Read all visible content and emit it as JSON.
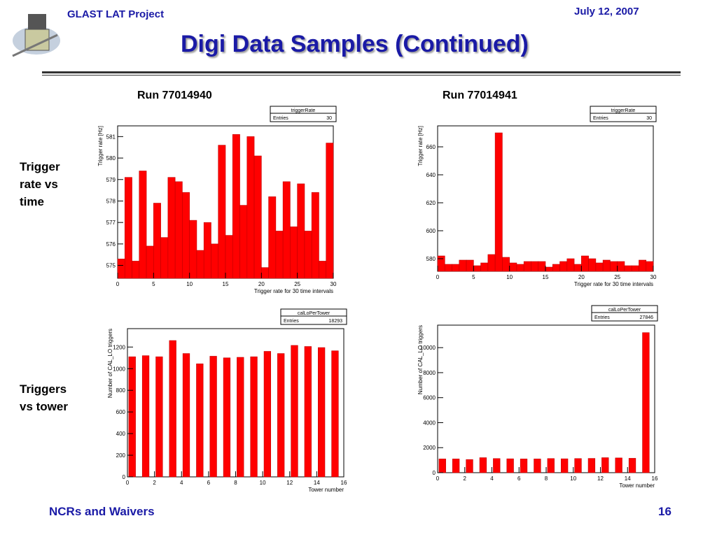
{
  "header": {
    "project": "GLAST LAT Project",
    "date": "July 12, 2007",
    "title": "Digi Data Samples (Continued)"
  },
  "columns": [
    "Run 77014940",
    "Run 77014941"
  ],
  "rows": [
    "Trigger rate vs time",
    "Triggers vs tower"
  ],
  "footer": {
    "left": "NCRs and Waivers",
    "page": "16"
  },
  "chart_data": [
    {
      "type": "histogram",
      "stats_title": "triggerRate",
      "stats_label": "Entries",
      "stats_value": 30,
      "x_label": "Trigger rate for 30 time intervals",
      "y_label": "Trigger rate [Hz]",
      "color": "#ff0000",
      "bins": [
        0,
        1,
        2,
        3,
        4,
        5,
        6,
        7,
        8,
        9,
        10,
        11,
        12,
        13,
        14,
        15,
        16,
        17,
        18,
        19,
        20,
        21,
        22,
        23,
        24,
        25,
        26,
        27,
        28,
        29,
        30
      ],
      "values": [
        575.3,
        579.1,
        575.2,
        579.4,
        575.9,
        577.9,
        576.3,
        579.1,
        578.9,
        578.4,
        577.1,
        575.7,
        577.0,
        576.0,
        580.6,
        576.4,
        581.1,
        577.8,
        581.0,
        580.1,
        574.9,
        578.2,
        576.6,
        578.9,
        576.8,
        578.8,
        576.6,
        578.4,
        575.2,
        580.7
      ],
      "xlim": [
        0,
        30
      ],
      "xticks": [
        0,
        5,
        10,
        15,
        20,
        25,
        30
      ],
      "ylim": [
        574.4,
        581.5
      ],
      "yticks": [
        575,
        576,
        577,
        578,
        579,
        580,
        581
      ]
    },
    {
      "type": "histogram",
      "stats_title": "triggerRate",
      "stats_label": "Entries",
      "stats_value": 30,
      "x_label": "Trigger rate for 30 time intervals",
      "y_label": "Trigger rate [Hz]",
      "color": "#ff0000",
      "bins": [
        0,
        1,
        2,
        3,
        4,
        5,
        6,
        7,
        8,
        9,
        10,
        11,
        12,
        13,
        14,
        15,
        16,
        17,
        18,
        19,
        20,
        21,
        22,
        23,
        24,
        25,
        26,
        27,
        28,
        29,
        30
      ],
      "values": [
        582,
        576,
        576,
        579,
        579,
        575,
        577,
        583,
        670,
        581,
        577,
        576,
        578,
        578,
        578,
        574,
        576,
        578,
        580,
        576,
        582,
        580,
        577,
        579,
        578,
        578,
        575,
        575,
        579,
        578
      ],
      "xlim": [
        0,
        30
      ],
      "xticks": [
        0,
        5,
        10,
        15,
        20,
        25,
        30
      ],
      "ylim": [
        571,
        675
      ],
      "yticks": [
        580,
        600,
        620,
        640,
        660
      ]
    },
    {
      "type": "bar",
      "stats_title": "calLoPerTower",
      "stats_label": "Entries",
      "stats_value": 18293,
      "x_label": "Tower number",
      "y_label": "Number of CAL_LO triggers",
      "color": "#ff0000",
      "x": [
        0,
        1,
        2,
        3,
        4,
        5,
        6,
        7,
        8,
        9,
        10,
        11,
        12,
        13,
        14,
        15
      ],
      "values": [
        1110,
        1120,
        1110,
        1260,
        1140,
        1045,
        1115,
        1100,
        1105,
        1110,
        1160,
        1140,
        1215,
        1205,
        1195,
        1165
      ],
      "xlim": [
        0,
        16
      ],
      "xticks": [
        0,
        2,
        4,
        6,
        8,
        10,
        12,
        14,
        16
      ],
      "ylim": [
        0,
        1370
      ],
      "yticks": [
        0,
        200,
        400,
        600,
        800,
        1000,
        1200
      ]
    },
    {
      "type": "bar",
      "stats_title": "calLoPerTower",
      "stats_label": "Entries",
      "stats_value": 27846,
      "x_label": "Tower number",
      "y_label": "Number of CAL_LO triggers",
      "color": "#ff0000",
      "x": [
        0,
        1,
        2,
        3,
        4,
        5,
        6,
        7,
        8,
        9,
        10,
        11,
        12,
        13,
        14,
        15
      ],
      "values": [
        1100,
        1100,
        1050,
        1200,
        1130,
        1110,
        1100,
        1100,
        1130,
        1110,
        1130,
        1140,
        1200,
        1180,
        1150,
        11200
      ],
      "xlim": [
        0,
        16
      ],
      "xticks": [
        0,
        2,
        4,
        6,
        8,
        10,
        12,
        14,
        16
      ],
      "ylim": [
        0,
        11800
      ],
      "yticks": [
        0,
        2000,
        4000,
        6000,
        8000,
        10000
      ]
    }
  ]
}
